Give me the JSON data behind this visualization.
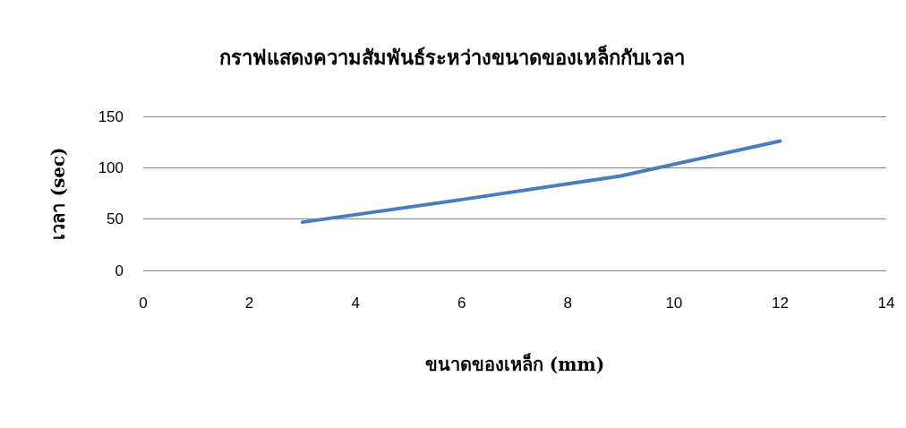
{
  "chart_data": {
    "type": "line",
    "title": "กราฟแสดงความสัมพันธ์ระหว่างขนาดของเหล็กกับเวลา",
    "xlabel": "ขนาดของเหล็ก (mm)",
    "ylabel": "เวลา (sec)",
    "x": [
      3,
      6,
      9,
      12
    ],
    "series": [
      {
        "color": "#4a7ebb",
        "values": [
          47,
          69,
          92,
          126
        ]
      }
    ],
    "xlim": [
      0,
      14
    ],
    "xticks": [
      0,
      2,
      4,
      6,
      8,
      10,
      12,
      14
    ],
    "ylim": [
      0,
      150
    ],
    "yticks": [
      0,
      50,
      100,
      150
    ],
    "grid": "y",
    "marker": "none",
    "line_style": "solid"
  }
}
